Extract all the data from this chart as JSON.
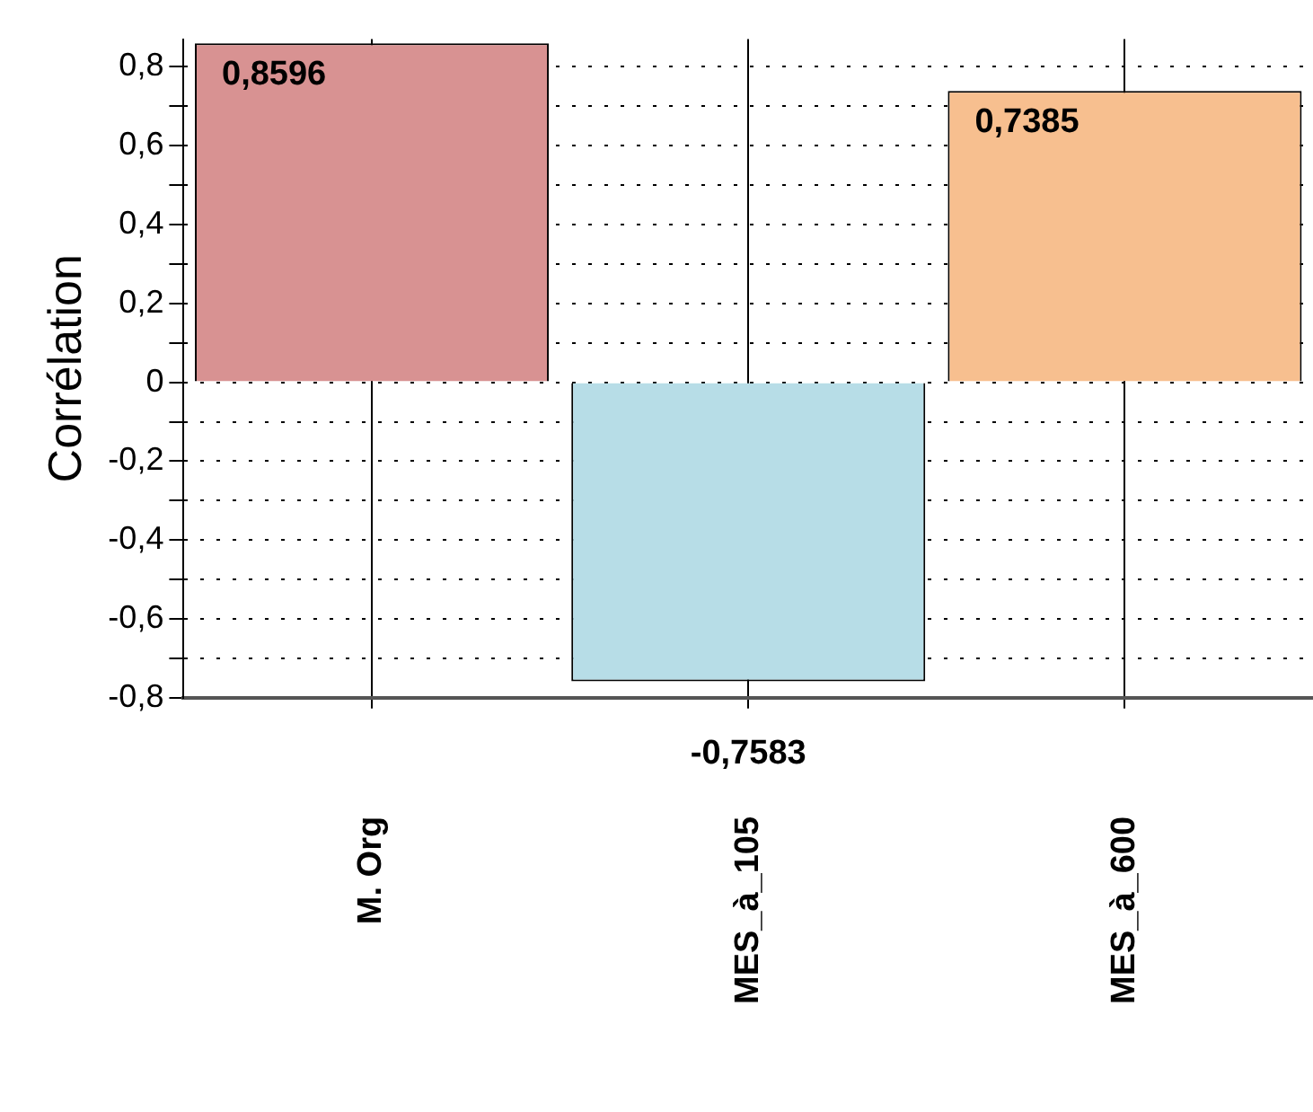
{
  "chart_data": {
    "type": "bar",
    "ylabel": "Corrélation",
    "categories": [
      "M. Org",
      "MES_à_105",
      "MES_à_600"
    ],
    "values": [
      0.8596,
      -0.7583,
      0.7385
    ],
    "colors": [
      "#d89292",
      "#b7dde7",
      "#f7bf8f"
    ],
    "value_labels": [
      "0,8596",
      "-0,7583",
      "0,7385"
    ],
    "ylim": [
      -0.8,
      0.87
    ],
    "yticks": [
      {
        "value": -0.8,
        "label": "-0,8"
      },
      {
        "value": -0.7,
        "label": null
      },
      {
        "value": -0.6,
        "label": "-0,6"
      },
      {
        "value": -0.5,
        "label": null
      },
      {
        "value": -0.4,
        "label": "-0,4"
      },
      {
        "value": -0.3,
        "label": null
      },
      {
        "value": -0.2,
        "label": "-0,2"
      },
      {
        "value": -0.1,
        "label": null
      },
      0,
      {
        "value": 0.1,
        "label": null
      },
      {
        "value": 0.2,
        "label": "0,2"
      },
      {
        "value": 0.3,
        "label": null
      },
      {
        "value": 0.4,
        "label": "0,4"
      },
      {
        "value": 0.5,
        "label": null
      },
      {
        "value": 0.6,
        "label": "0,6"
      },
      {
        "value": 0.7,
        "label": null
      },
      {
        "value": 0.8,
        "label": "0,8"
      }
    ],
    "grid": true,
    "legend": false
  }
}
